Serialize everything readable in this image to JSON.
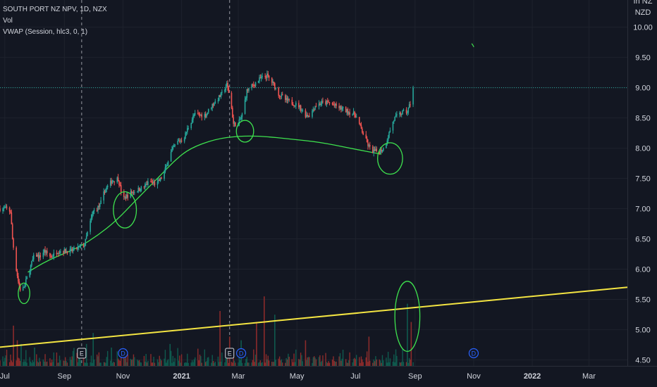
{
  "legend": {
    "symbol_line": "SOUTH PORT NZ NPV, 1D, NZX",
    "volume_label": "Vol",
    "vwap_label": "VWAP (Session, hlc3, 0, 1)"
  },
  "currency_label": "NZD",
  "currency_partial": "In NZ",
  "colors": {
    "background": "#131722",
    "grid": "#1e222d",
    "up": "#26a69a",
    "down": "#ef5350",
    "vol_up": "#0f5a4e",
    "vol_down": "#8a2b2b",
    "drawing": "#3ee24e",
    "trendline": "#f4e542",
    "price_line": "#26a69a",
    "text": "#d1d4dc",
    "event_earnings": "#d1d4dc",
    "event_dividend": "#2962ff"
  },
  "chart_data": {
    "type": "candlestick",
    "symbol": "SOUTH PORT NZ NPV",
    "interval": "1D",
    "exchange": "NZX",
    "currency": "NZD",
    "y_ticks": [
      "10.00",
      "9.50",
      "9.00",
      "8.50",
      "8.00",
      "7.50",
      "7.00",
      "6.50",
      "6.00",
      "5.50",
      "5.00",
      "4.50"
    ],
    "ylim": [
      4.4,
      10.45
    ],
    "x_ticks": [
      {
        "label": "Jul",
        "date": "2020-07-01"
      },
      {
        "label": "Sep",
        "date": "2020-09-01"
      },
      {
        "label": "Nov",
        "date": "2020-11-01"
      },
      {
        "label": "2021",
        "date": "2021-01-01",
        "bold": true
      },
      {
        "label": "Mar",
        "date": "2021-03-01"
      },
      {
        "label": "May",
        "date": "2021-05-01"
      },
      {
        "label": "Jul",
        "date": "2021-07-01"
      },
      {
        "label": "Sep",
        "date": "2021-09-01"
      },
      {
        "label": "Nov",
        "date": "2021-11-01"
      },
      {
        "label": "2022",
        "date": "2022-01-01",
        "bold": true
      },
      {
        "label": "Mar",
        "date": "2022-03-01"
      }
    ],
    "xlim": [
      "2020-06-26",
      "2022-04-10"
    ],
    "price_path": [
      [
        "2020-06-26",
        7.0
      ],
      [
        "2020-07-03",
        7.0
      ],
      [
        "2020-07-07",
        6.95
      ],
      [
        "2020-07-09",
        6.5
      ],
      [
        "2020-07-12",
        6.1
      ],
      [
        "2020-07-15",
        5.8
      ],
      [
        "2020-07-18",
        5.6
      ],
      [
        "2020-07-22",
        5.75
      ],
      [
        "2020-07-27",
        6.0
      ],
      [
        "2020-08-01",
        6.25
      ],
      [
        "2020-08-06",
        6.2
      ],
      [
        "2020-08-11",
        6.3
      ],
      [
        "2020-08-18",
        6.2
      ],
      [
        "2020-08-25",
        6.3
      ],
      [
        "2020-09-01",
        6.3
      ],
      [
        "2020-09-08",
        6.3
      ],
      [
        "2020-09-15",
        6.35
      ],
      [
        "2020-09-22",
        6.4
      ],
      [
        "2020-09-25",
        6.6
      ],
      [
        "2020-10-01",
        6.95
      ],
      [
        "2020-10-08",
        7.05
      ],
      [
        "2020-10-13",
        7.3
      ],
      [
        "2020-10-20",
        7.45
      ],
      [
        "2020-10-27",
        7.5
      ],
      [
        "2020-11-01",
        7.15
      ],
      [
        "2020-11-08",
        7.25
      ],
      [
        "2020-11-15",
        7.3
      ],
      [
        "2020-11-22",
        7.35
      ],
      [
        "2020-11-29",
        7.45
      ],
      [
        "2020-12-06",
        7.4
      ],
      [
        "2020-12-13",
        7.55
      ],
      [
        "2020-12-20",
        7.9
      ],
      [
        "2020-12-27",
        8.1
      ],
      [
        "2021-01-03",
        8.15
      ],
      [
        "2021-01-08",
        8.35
      ],
      [
        "2021-01-14",
        8.55
      ],
      [
        "2021-01-20",
        8.55
      ],
      [
        "2021-01-26",
        8.55
      ],
      [
        "2021-02-01",
        8.7
      ],
      [
        "2021-02-07",
        8.8
      ],
      [
        "2021-02-12",
        8.9
      ],
      [
        "2021-02-17",
        9.05
      ],
      [
        "2021-02-21",
        8.8
      ],
      [
        "2021-02-24",
        8.4
      ],
      [
        "2021-03-01",
        8.4
      ],
      [
        "2021-03-05",
        8.55
      ],
      [
        "2021-03-10",
        8.95
      ],
      [
        "2021-03-17",
        9.05
      ],
      [
        "2021-03-24",
        9.15
      ],
      [
        "2021-03-31",
        9.2
      ],
      [
        "2021-04-07",
        9.05
      ],
      [
        "2021-04-12",
        8.9
      ],
      [
        "2021-04-19",
        8.8
      ],
      [
        "2021-04-26",
        8.75
      ],
      [
        "2021-05-03",
        8.7
      ],
      [
        "2021-05-10",
        8.55
      ],
      [
        "2021-05-15",
        8.55
      ],
      [
        "2021-05-20",
        8.7
      ],
      [
        "2021-05-27",
        8.75
      ],
      [
        "2021-06-03",
        8.75
      ],
      [
        "2021-06-10",
        8.7
      ],
      [
        "2021-06-17",
        8.65
      ],
      [
        "2021-06-24",
        8.6
      ],
      [
        "2021-07-01",
        8.55
      ],
      [
        "2021-07-06",
        8.35
      ],
      [
        "2021-07-10",
        8.2
      ],
      [
        "2021-07-14",
        8.05
      ],
      [
        "2021-07-18",
        7.95
      ],
      [
        "2021-07-22",
        7.95
      ],
      [
        "2021-07-26",
        7.95
      ],
      [
        "2021-07-31",
        8.0
      ],
      [
        "2021-08-04",
        8.2
      ],
      [
        "2021-08-08",
        8.4
      ],
      [
        "2021-08-11",
        8.5
      ],
      [
        "2021-08-15",
        8.55
      ],
      [
        "2021-08-20",
        8.6
      ],
      [
        "2021-08-24",
        8.6
      ],
      [
        "2021-08-27",
        8.75
      ],
      [
        "2021-08-30",
        9.0
      ]
    ],
    "vwap": [
      [
        "2020-07-25",
        5.95
      ],
      [
        "2020-08-15",
        6.15
      ],
      [
        "2020-09-15",
        6.35
      ],
      [
        "2020-10-05",
        6.55
      ],
      [
        "2020-10-25",
        6.8
      ],
      [
        "2020-11-15",
        7.15
      ],
      [
        "2020-12-10",
        7.55
      ],
      [
        "2020-12-25",
        7.8
      ],
      [
        "2021-01-10",
        8.0
      ],
      [
        "2021-02-05",
        8.15
      ],
      [
        "2021-03-01",
        8.2
      ],
      [
        "2021-03-25",
        8.2
      ],
      [
        "2021-04-25",
        8.15
      ],
      [
        "2021-05-25",
        8.1
      ],
      [
        "2021-06-25",
        8.0
      ],
      [
        "2021-07-28",
        7.9
      ]
    ],
    "price_line_level": 9.0,
    "trendline": {
      "start": [
        "2020-06-26",
        4.71
      ],
      "end": [
        "2022-04-10",
        5.7
      ]
    },
    "volume": {
      "max_height_fraction": 0.2,
      "spikes": [
        [
          "2020-07-10",
          0.55,
          "down"
        ],
        [
          "2020-07-14",
          0.35,
          "down"
        ],
        [
          "2020-07-18",
          0.3,
          "up"
        ],
        [
          "2020-08-01",
          0.25,
          "up"
        ],
        [
          "2020-09-24",
          0.3,
          "up"
        ],
        [
          "2020-10-01",
          0.45,
          "up"
        ],
        [
          "2020-10-20",
          0.25,
          "up"
        ],
        [
          "2020-12-20",
          0.3,
          "up"
        ],
        [
          "2021-02-10",
          0.75,
          "down"
        ],
        [
          "2021-02-20",
          0.4,
          "down"
        ],
        [
          "2021-03-04",
          0.35,
          "up"
        ],
        [
          "2021-03-20",
          0.6,
          "down"
        ],
        [
          "2021-03-28",
          0.95,
          "down"
        ],
        [
          "2021-04-08",
          0.7,
          "up"
        ],
        [
          "2021-05-10",
          0.35,
          "down"
        ],
        [
          "2021-07-15",
          0.4,
          "down"
        ],
        [
          "2021-08-24",
          0.85,
          "up"
        ],
        [
          "2021-08-28",
          0.6,
          "down"
        ]
      ]
    },
    "events": [
      {
        "type": "earnings",
        "label": "E",
        "date": "2020-09-19"
      },
      {
        "type": "dividend",
        "label": "D",
        "date": "2020-11-01"
      },
      {
        "type": "earnings",
        "label": "E",
        "date": "2021-02-20"
      },
      {
        "type": "dividend",
        "label": "D",
        "date": "2021-03-04"
      },
      {
        "type": "dividend",
        "label": "D",
        "date": "2021-11-01"
      }
    ],
    "session_breaks": [
      "2020-09-19",
      "2021-02-20"
    ],
    "annotations": [
      {
        "type": "ellipse",
        "center": [
          "2020-07-21",
          5.6
        ],
        "rx_days": 6,
        "ry_price": 0.17
      },
      {
        "type": "ellipse",
        "center": [
          "2020-11-03",
          6.98
        ],
        "rx_days": 12,
        "ry_price": 0.3
      },
      {
        "type": "ellipse",
        "center": [
          "2021-03-08",
          8.28
        ],
        "rx_days": 9,
        "ry_price": 0.18
      },
      {
        "type": "ellipse",
        "center": [
          "2021-08-06",
          7.83
        ],
        "rx_days": 13,
        "ry_price": 0.26
      },
      {
        "type": "ellipse",
        "center": [
          "2021-08-24",
          5.22
        ],
        "rx_days": 13,
        "ry_price": 0.58
      },
      {
        "type": "tick",
        "at": [
          "2021-10-30",
          9.73
        ]
      }
    ]
  }
}
